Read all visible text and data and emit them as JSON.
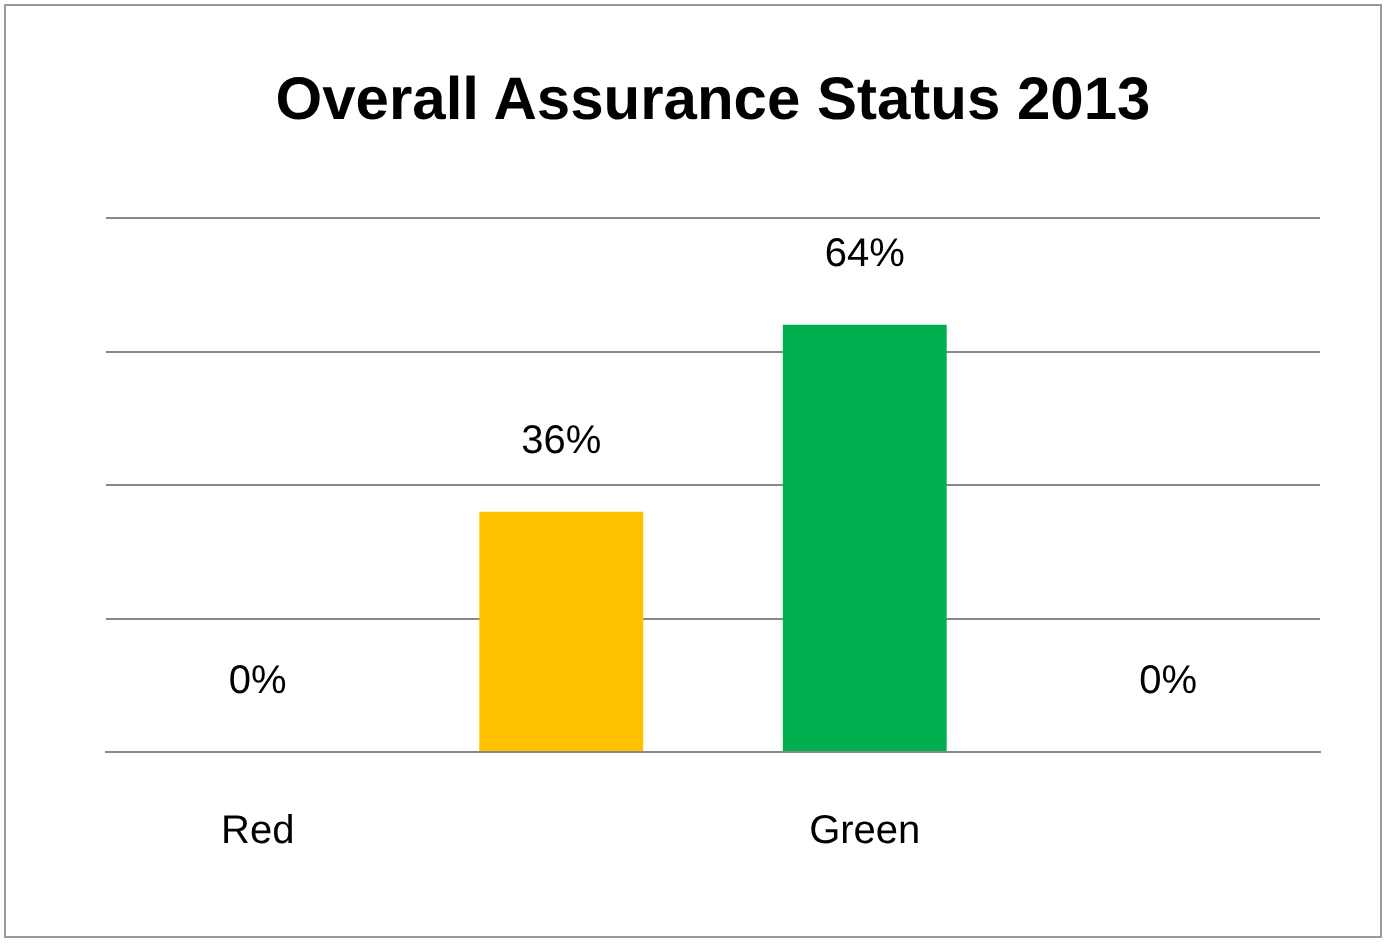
{
  "chart_data": {
    "type": "bar",
    "title": "Overall Assurance Status 2013",
    "categories": [
      "Red",
      null,
      "Green",
      null
    ],
    "values": [
      0,
      36,
      64,
      0
    ],
    "value_labels": [
      "0%",
      "36%",
      "64%",
      "0%"
    ],
    "colors": [
      "#c00000",
      "#ffc000",
      "#00b050",
      "#604a7b"
    ],
    "grid": "y",
    "tick_labels": "x"
  }
}
